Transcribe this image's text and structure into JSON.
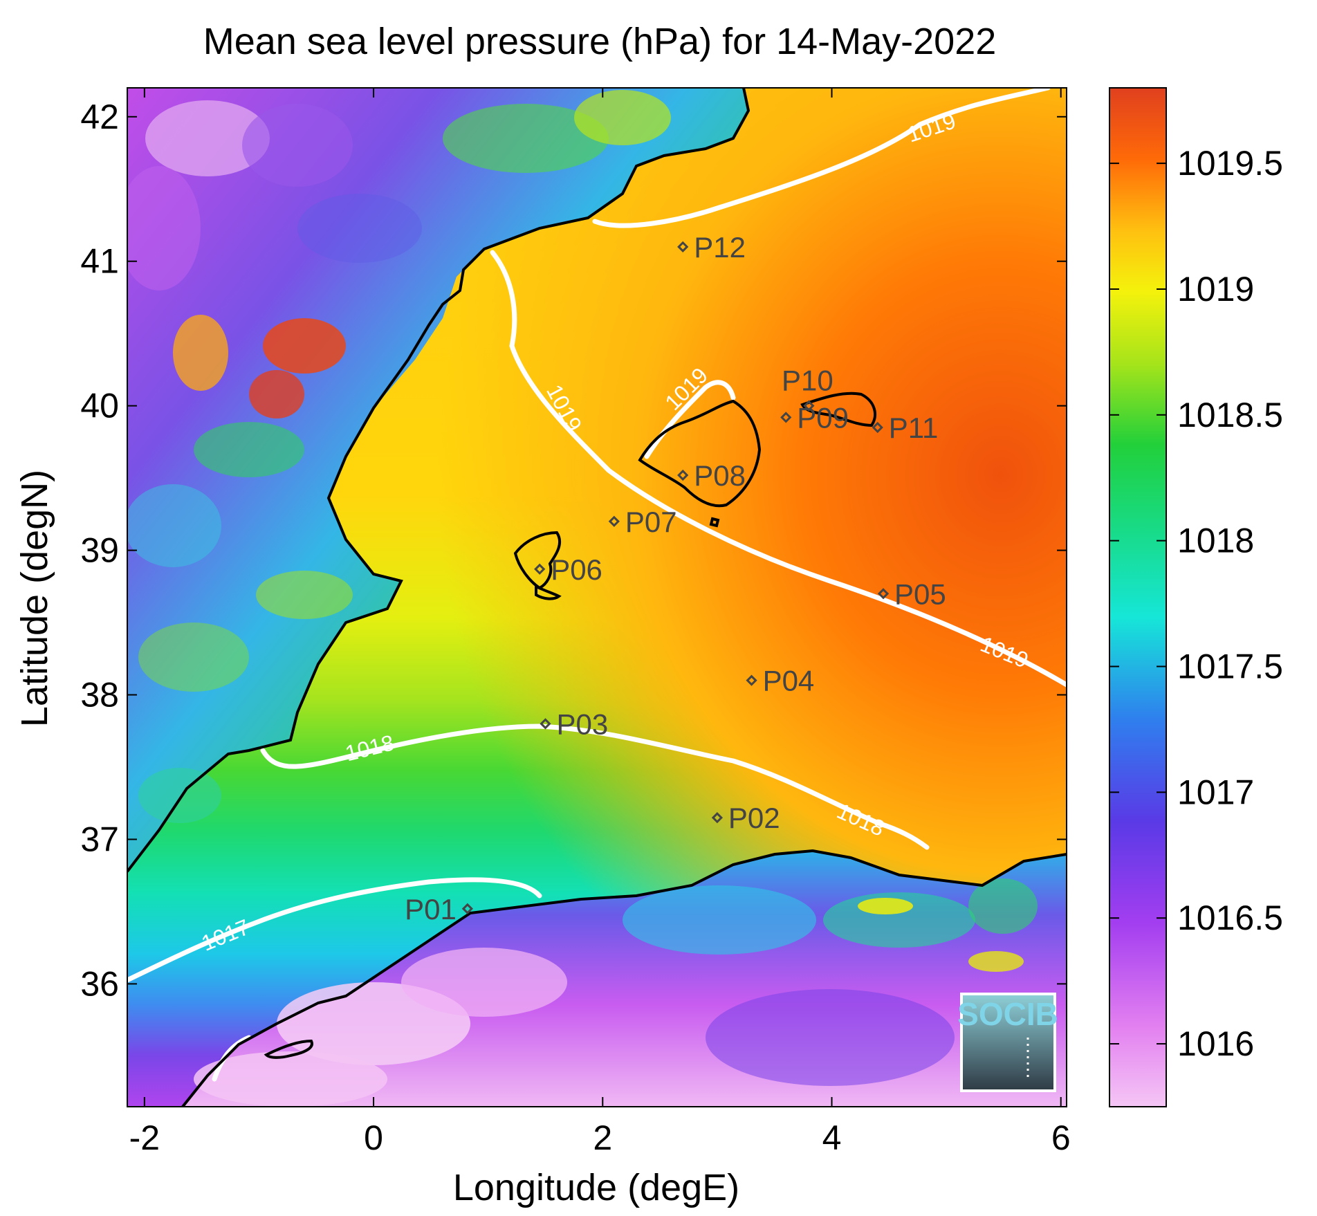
{
  "figure": {
    "title": "Mean sea level pressure (hPa) for 14-May-2022",
    "xlabel": "Longitude (degE)",
    "ylabel": "Latitude (degN)",
    "xlim": [
      -2.15,
      6.05
    ],
    "ylim": [
      35.15,
      42.2
    ],
    "xticks": [
      "-2",
      "0",
      "2",
      "4",
      "6"
    ],
    "yticks": [
      "36",
      "37",
      "38",
      "39",
      "40",
      "41",
      "42"
    ]
  },
  "colorbar": {
    "range": [
      1015.75,
      1019.8
    ],
    "ticks": [
      "1016",
      "1016.5",
      "1017",
      "1017.5",
      "1018",
      "1018.5",
      "1019",
      "1019.5"
    ]
  },
  "contour_labels": {
    "c1017": "1017",
    "c1018a": "1018",
    "c1018b": "1018",
    "c1019a": "1019",
    "c1019b": "1019",
    "c1019c": "1019",
    "c1019d": "1019"
  },
  "stations": [
    {
      "name": "P01",
      "lon": 0.82,
      "lat": 36.52
    },
    {
      "name": "P02",
      "lon": 3.0,
      "lat": 37.15
    },
    {
      "name": "P03",
      "lon": 1.5,
      "lat": 37.8
    },
    {
      "name": "P04",
      "lon": 3.3,
      "lat": 38.1
    },
    {
      "name": "P05",
      "lon": 4.45,
      "lat": 38.7
    },
    {
      "name": "P06",
      "lon": 1.45,
      "lat": 38.87
    },
    {
      "name": "P07",
      "lon": 2.1,
      "lat": 39.2
    },
    {
      "name": "P08",
      "lon": 2.7,
      "lat": 39.52
    },
    {
      "name": "P09",
      "lon": 3.6,
      "lat": 39.92
    },
    {
      "name": "P10",
      "lon": 3.8,
      "lat": 40.0
    },
    {
      "name": "P11",
      "lon": 4.4,
      "lat": 39.85
    },
    {
      "name": "P12",
      "lon": 2.7,
      "lat": 41.1
    }
  ],
  "logo": {
    "text": "SOCIB"
  },
  "colors": {
    "contour": "#ffffff",
    "coast": "#000000",
    "station": "#444444"
  }
}
